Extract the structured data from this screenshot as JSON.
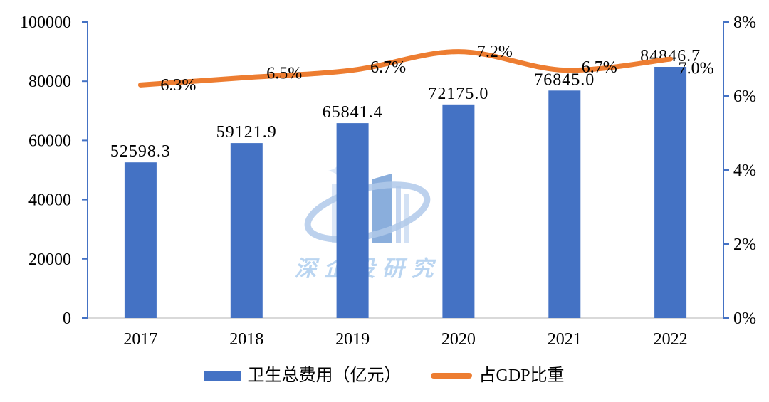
{
  "watermark": {
    "logo_name": "building-swoosh-logo",
    "text": "深企投研究",
    "text_color": "#A9CBEE"
  },
  "chart_data": {
    "type": "bar+line",
    "categories": [
      "2017",
      "2018",
      "2019",
      "2020",
      "2021",
      "2022"
    ],
    "series": [
      {
        "name": "卫生总费用（亿元）",
        "type": "bar",
        "axis": "left",
        "color": "#4472C4",
        "values": [
          52598.3,
          59121.9,
          65841.4,
          72175.0,
          76845.0,
          84846.7
        ],
        "labels": [
          "52598.3",
          "59121.9",
          "65841.4",
          "72175.0",
          "76845.0",
          "84846.7"
        ]
      },
      {
        "name": "占GDP比重",
        "type": "line",
        "axis": "right",
        "color": "#ED7D31",
        "values": [
          6.3,
          6.5,
          6.7,
          7.2,
          6.7,
          7.0
        ],
        "labels": [
          "6.3%",
          "6.5%",
          "6.7%",
          "7.2%",
          "6.7%",
          "7.0%"
        ]
      }
    ],
    "left_axis": {
      "min": 0,
      "max": 100000,
      "tick_step": 20000,
      "tick_labels": [
        "0",
        "20000",
        "40000",
        "60000",
        "80000",
        "100000"
      ],
      "color": "#4472C4"
    },
    "right_axis": {
      "min": 0,
      "max": 8,
      "tick_step": 2,
      "tick_labels": [
        "0%",
        "2%",
        "4%",
        "6%",
        "8%"
      ],
      "color": "#4472C4"
    },
    "x_axis": {
      "baseline_color": "#D9D9D9"
    },
    "grid": "off",
    "legend": {
      "position": "bottom",
      "items": [
        {
          "label": "卫生总费用（亿元）",
          "swatch": "bar",
          "color": "#4472C4"
        },
        {
          "label": "占GDP比重",
          "swatch": "line",
          "color": "#ED7D31"
        }
      ]
    }
  }
}
